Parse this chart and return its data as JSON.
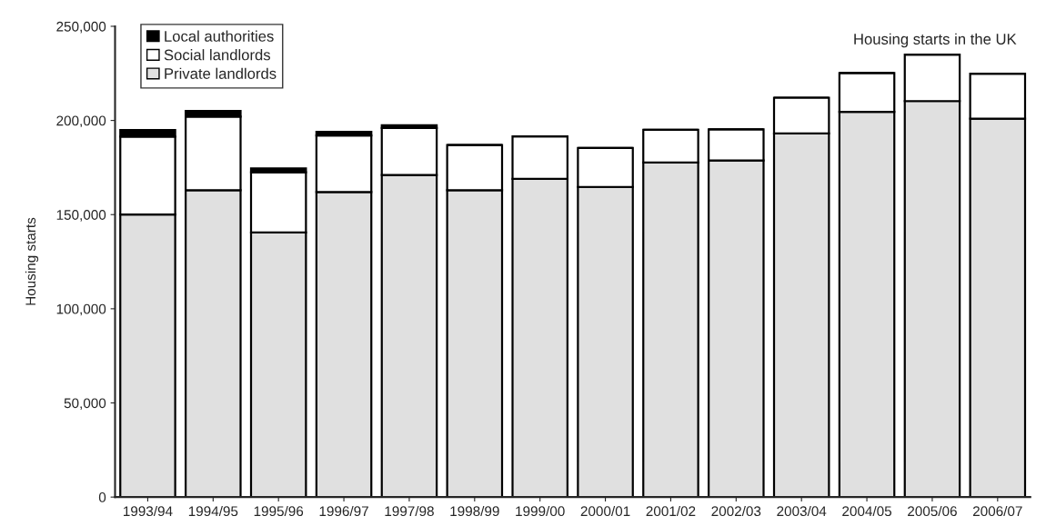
{
  "chart_data": {
    "type": "bar",
    "title": "Housing starts in the UK",
    "ylabel": "Housing starts",
    "stacked": true,
    "categories": [
      "1993/94",
      "1994/95",
      "1995/96",
      "1996/97",
      "1997/98",
      "1998/99",
      "1999/00",
      "2000/01",
      "2001/02",
      "2002/03",
      "2003/04",
      "2004/05",
      "2005/06",
      "2006/07"
    ],
    "series": [
      {
        "name": "Private landlords",
        "color": "#e0e0e0",
        "values": [
          150000,
          163000,
          140500,
          162000,
          171000,
          163000,
          169000,
          164700,
          177700,
          178800,
          193100,
          204600,
          210300,
          201000
        ]
      },
      {
        "name": "Social landlords",
        "color": "#ffffff",
        "values": [
          41400,
          39000,
          32000,
          30000,
          25000,
          24000,
          22500,
          20700,
          17300,
          16500,
          19000,
          20600,
          24700,
          23800
        ]
      },
      {
        "name": "Local authorities",
        "color": "#000000",
        "values": [
          3500,
          3000,
          2000,
          2000,
          1500,
          0,
          0,
          0,
          0,
          0,
          0,
          0,
          0,
          0
        ]
      }
    ],
    "ylim": [
      0,
      250000
    ],
    "yticks": [
      {
        "value": 0,
        "label": "0"
      },
      {
        "value": 50000,
        "label": "50,000"
      },
      {
        "value": 100000,
        "label": "100,000"
      },
      {
        "value": 150000,
        "label": "150,000"
      },
      {
        "value": 200000,
        "label": "200,000"
      },
      {
        "value": 250000,
        "label": "250,000"
      }
    ],
    "grid": false,
    "legend": "top left"
  }
}
